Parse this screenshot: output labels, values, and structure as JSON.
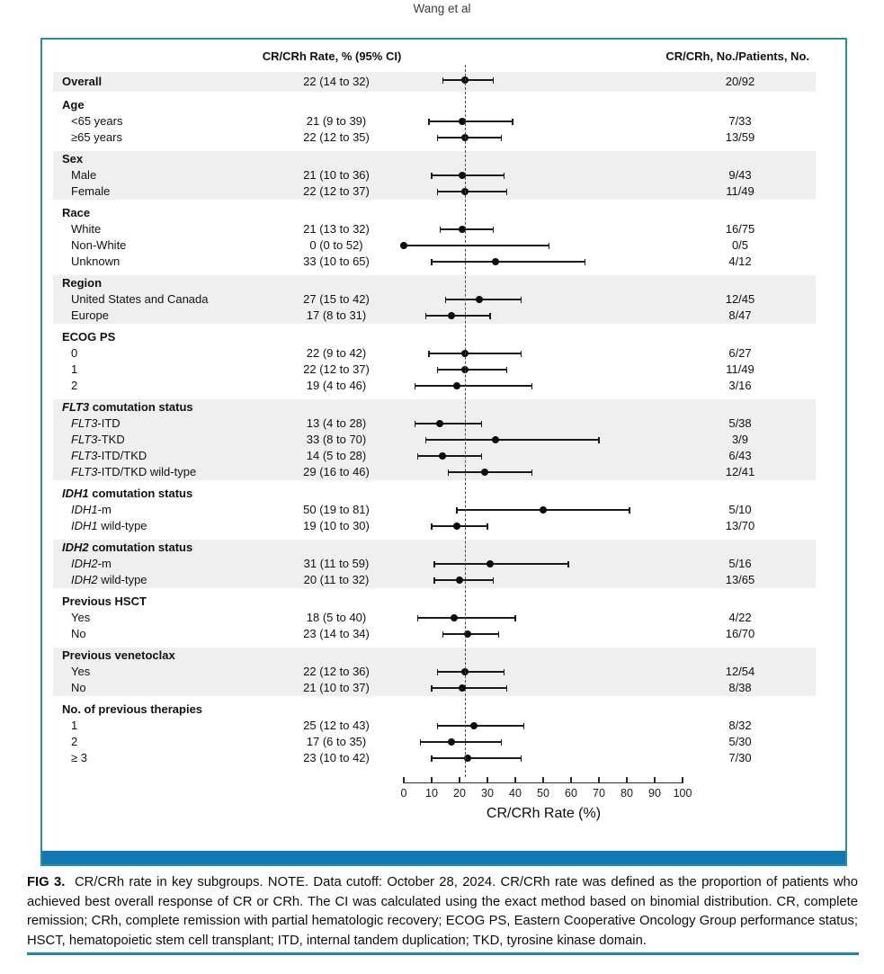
{
  "running_head": "Wang et al",
  "table_headers": {
    "rate_col": "CR/CRh Rate, % (95% CI)",
    "count_col": "CR/CRh, No./Patients, No."
  },
  "chart_data": {
    "type": "scatter",
    "variant": "forest-plot",
    "xlabel": "CR/CRh Rate (%)",
    "xlim": [
      0,
      100
    ],
    "xticks": [
      0,
      10,
      20,
      30,
      40,
      50,
      60,
      70,
      80,
      90,
      100
    ],
    "reference_line_x": 22,
    "grid": false,
    "groups": [
      {
        "header": null,
        "shaded": true,
        "rows": [
          {
            "label": "Overall",
            "bold": true,
            "ci_text": "22 (14 to 32)",
            "estimate": 22,
            "ci_low": 14,
            "ci_high": 32,
            "count": "20/92"
          }
        ]
      },
      {
        "header": "Age",
        "shaded": false,
        "rows": [
          {
            "label": "<65 years",
            "ci_text": "21 (9 to 39)",
            "estimate": 21,
            "ci_low": 9,
            "ci_high": 39,
            "count": "7/33"
          },
          {
            "label": "≥65 years",
            "ci_text": "22 (12 to 35)",
            "estimate": 22,
            "ci_low": 12,
            "ci_high": 35,
            "count": "13/59"
          }
        ]
      },
      {
        "header": "Sex",
        "shaded": true,
        "rows": [
          {
            "label": "Male",
            "ci_text": "21 (10 to 36)",
            "estimate": 21,
            "ci_low": 10,
            "ci_high": 36,
            "count": "9/43"
          },
          {
            "label": "Female",
            "ci_text": "22 (12 to 37)",
            "estimate": 22,
            "ci_low": 12,
            "ci_high": 37,
            "count": "11/49"
          }
        ]
      },
      {
        "header": "Race",
        "shaded": false,
        "rows": [
          {
            "label": "White",
            "ci_text": "21 (13 to 32)",
            "estimate": 21,
            "ci_low": 13,
            "ci_high": 32,
            "count": "16/75"
          },
          {
            "label": "Non-White",
            "ci_text": "0 (0 to 52)",
            "estimate": 0,
            "ci_low": 0,
            "ci_high": 52,
            "count": "0/5"
          },
          {
            "label": "Unknown",
            "ci_text": "33 (10 to 65)",
            "estimate": 33,
            "ci_low": 10,
            "ci_high": 65,
            "count": "4/12"
          }
        ]
      },
      {
        "header": "Region",
        "shaded": true,
        "rows": [
          {
            "label": "United States and Canada",
            "ci_text": "27 (15 to 42)",
            "estimate": 27,
            "ci_low": 15,
            "ci_high": 42,
            "count": "12/45"
          },
          {
            "label": "Europe",
            "ci_text": "17 (8 to 31)",
            "estimate": 17,
            "ci_low": 8,
            "ci_high": 31,
            "count": "8/47"
          }
        ]
      },
      {
        "header": "ECOG PS",
        "shaded": false,
        "rows": [
          {
            "label": "0",
            "ci_text": "22 (9 to 42)",
            "estimate": 22,
            "ci_low": 9,
            "ci_high": 42,
            "count": "6/27"
          },
          {
            "label": "1",
            "ci_text": "22 (12 to 37)",
            "estimate": 22,
            "ci_low": 12,
            "ci_high": 37,
            "count": "11/49"
          },
          {
            "label": "2",
            "ci_text": "19 (4 to 46)",
            "estimate": 19,
            "ci_low": 4,
            "ci_high": 46,
            "count": "3/16"
          }
        ]
      },
      {
        "header": "*FLT3* comutation status",
        "shaded": true,
        "rows": [
          {
            "label": "*FLT3*-ITD",
            "ci_text": "13 (4 to 28)",
            "estimate": 13,
            "ci_low": 4,
            "ci_high": 28,
            "count": "5/38"
          },
          {
            "label": "*FLT3*-TKD",
            "ci_text": "33 (8 to 70)",
            "estimate": 33,
            "ci_low": 8,
            "ci_high": 70,
            "count": "3/9"
          },
          {
            "label": "*FLT3*-ITD/TKD",
            "ci_text": "14 (5 to 28)",
            "estimate": 14,
            "ci_low": 5,
            "ci_high": 28,
            "count": "6/43"
          },
          {
            "label": "*FLT3*-ITD/TKD wild-type",
            "ci_text": "29 (16 to 46)",
            "estimate": 29,
            "ci_low": 16,
            "ci_high": 46,
            "count": "12/41"
          }
        ]
      },
      {
        "header": "*IDH1* comutation status",
        "shaded": false,
        "rows": [
          {
            "label": "*IDH1*-m",
            "ci_text": "50 (19 to 81)",
            "estimate": 50,
            "ci_low": 19,
            "ci_high": 81,
            "count": "5/10"
          },
          {
            "label": "*IDH1* wild-type",
            "ci_text": "19 (10 to 30)",
            "estimate": 19,
            "ci_low": 10,
            "ci_high": 30,
            "count": "13/70"
          }
        ]
      },
      {
        "header": "*IDH2* comutation status",
        "shaded": true,
        "rows": [
          {
            "label": "*IDH2*-m",
            "ci_text": "31 (11 to 59)",
            "estimate": 31,
            "ci_low": 11,
            "ci_high": 59,
            "count": "5/16"
          },
          {
            "label": "*IDH2* wild-type",
            "ci_text": "20 (11 to 32)",
            "estimate": 20,
            "ci_low": 11,
            "ci_high": 32,
            "count": "13/65"
          }
        ]
      },
      {
        "header": "Previous HSCT",
        "shaded": false,
        "rows": [
          {
            "label": "Yes",
            "ci_text": "18 (5 to 40)",
            "estimate": 18,
            "ci_low": 5,
            "ci_high": 40,
            "count": "4/22"
          },
          {
            "label": "No",
            "ci_text": "23 (14 to 34)",
            "estimate": 23,
            "ci_low": 14,
            "ci_high": 34,
            "count": "16/70"
          }
        ]
      },
      {
        "header": "Previous venetoclax",
        "shaded": true,
        "rows": [
          {
            "label": "Yes",
            "ci_text": "22 (12 to 36)",
            "estimate": 22,
            "ci_low": 12,
            "ci_high": 36,
            "count": "12/54"
          },
          {
            "label": "No",
            "ci_text": "21 (10 to 37)",
            "estimate": 21,
            "ci_low": 10,
            "ci_high": 37,
            "count": "8/38"
          }
        ]
      },
      {
        "header": "No. of previous therapies",
        "shaded": false,
        "rows": [
          {
            "label": "1",
            "ci_text": "25 (12 to 43)",
            "estimate": 25,
            "ci_low": 12,
            "ci_high": 43,
            "count": "8/32"
          },
          {
            "label": "2",
            "ci_text": "17 (6 to 35)",
            "estimate": 17,
            "ci_low": 6,
            "ci_high": 35,
            "count": "5/30"
          },
          {
            "label": "≥ 3",
            "ci_text": "23 (10 to 42)",
            "estimate": 23,
            "ci_low": 10,
            "ci_high": 42,
            "count": "7/30"
          }
        ]
      }
    ]
  },
  "caption": {
    "tag": "FIG 3.",
    "text": "CR/CRh rate in key subgroups. NOTE. Data cutoff: October 28, 2024. CR/CRh rate was defined as the proportion of patients who achieved best overall response of CR or CRh. The CI was calculated using the exact method based on binomial distribution. CR, complete remission; CRh, complete remission with partial hematologic recovery; ECOG PS, Eastern Cooperative Oncology Group performance status; HSCT, hematopoietic stem cell transplant; ITD, internal tandem duplication; TKD, tyrosine kinase domain."
  },
  "colors": {
    "box_border": "#2b8ca8",
    "footer_bar": "#1278b3",
    "bottom_rule": "#1e86ae",
    "shaded_band": "#efefef",
    "marker": "#0d0d0d"
  }
}
